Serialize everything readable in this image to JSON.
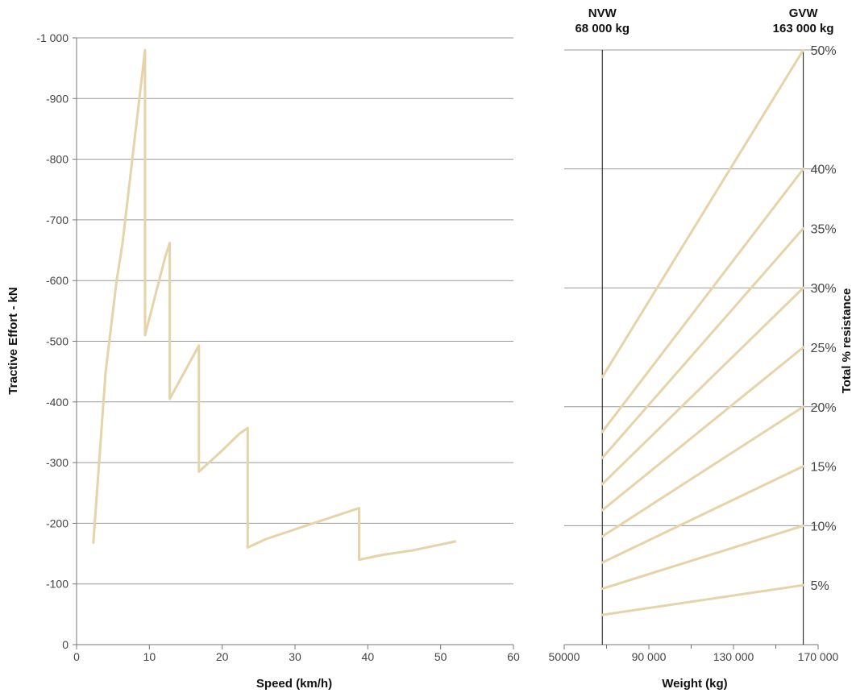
{
  "colors": {
    "series": "#e6d3a8",
    "grid": "#999999",
    "axis": "#777777",
    "marker_line": "#111111"
  },
  "chart_data": [
    {
      "type": "line",
      "xlabel": "Speed (km/h)",
      "ylabel": "Tractive Effort - kN",
      "xlim": [
        0,
        60
      ],
      "ylim": [
        0,
        -1000
      ],
      "xticks": [
        0,
        10,
        20,
        30,
        40,
        50,
        60
      ],
      "xtick_labels": [
        "0",
        "10",
        "20",
        "30",
        "40",
        "50",
        "60"
      ],
      "yticks": [
        0,
        -100,
        -200,
        -300,
        -400,
        -500,
        -600,
        -700,
        -800,
        -900,
        -1000
      ],
      "ytick_labels": [
        "0",
        "-100",
        "-200",
        "-300",
        "-400",
        "-500",
        "-600",
        "-700",
        "-800",
        "-900",
        "-1 000"
      ],
      "grid": "horizontal",
      "series": [
        {
          "x": [
            2.3,
            4,
            5.5,
            6.3,
            9.4,
            9.4,
            12.2,
            12.8,
            12.8,
            16.8,
            16.8,
            20,
            22.4,
            23.5,
            23.5,
            26,
            30,
            35,
            38.8,
            38.8,
            42,
            46,
            52
          ],
          "y": [
            -168,
            -450,
            -600,
            -660,
            -980,
            -510,
            -640,
            -662,
            -405,
            -493,
            -285,
            -320,
            -348,
            -357,
            -160,
            -174,
            -190,
            -210,
            -225,
            -140,
            -148,
            -155,
            -170
          ]
        }
      ]
    },
    {
      "type": "line",
      "xlabel": "Weight (kg)",
      "ylabel": "Total % resistance",
      "xlim": [
        50000,
        170000
      ],
      "xticks": [
        50000,
        90000,
        130000,
        170000
      ],
      "xtick_labels": [
        "50000",
        "90 000",
        "130 000",
        "170 000"
      ],
      "minor_xticks": [
        70000,
        110000,
        150000
      ],
      "grid": "horizontal",
      "markers": [
        {
          "label_line1": "NVW",
          "label_line2": "68 000 kg",
          "x": 68000
        },
        {
          "label_line1": "GVW",
          "label_line2": "163 000 kg",
          "x": 163000
        }
      ],
      "series": [
        {
          "name": "50%",
          "x": [
            68000,
            163000
          ],
          "y": [
            22.5,
            50
          ]
        },
        {
          "name": "40%",
          "x": [
            68000,
            163000
          ],
          "y": [
            17.9,
            40
          ]
        },
        {
          "name": "35%",
          "x": [
            68000,
            163000
          ],
          "y": [
            15.7,
            35
          ]
        },
        {
          "name": "30%",
          "x": [
            68000,
            163000
          ],
          "y": [
            13.5,
            30
          ]
        },
        {
          "name": "25%",
          "x": [
            68000,
            163000
          ],
          "y": [
            11.3,
            25
          ]
        },
        {
          "name": "20%",
          "x": [
            68000,
            163000
          ],
          "y": [
            9.1,
            20
          ]
        },
        {
          "name": "15%",
          "x": [
            68000,
            163000
          ],
          "y": [
            6.9,
            15
          ]
        },
        {
          "name": "10%",
          "x": [
            68000,
            163000
          ],
          "y": [
            4.7,
            10
          ]
        },
        {
          "name": "5%",
          "x": [
            68000,
            163000
          ],
          "y": [
            2.5,
            5
          ]
        }
      ]
    }
  ]
}
